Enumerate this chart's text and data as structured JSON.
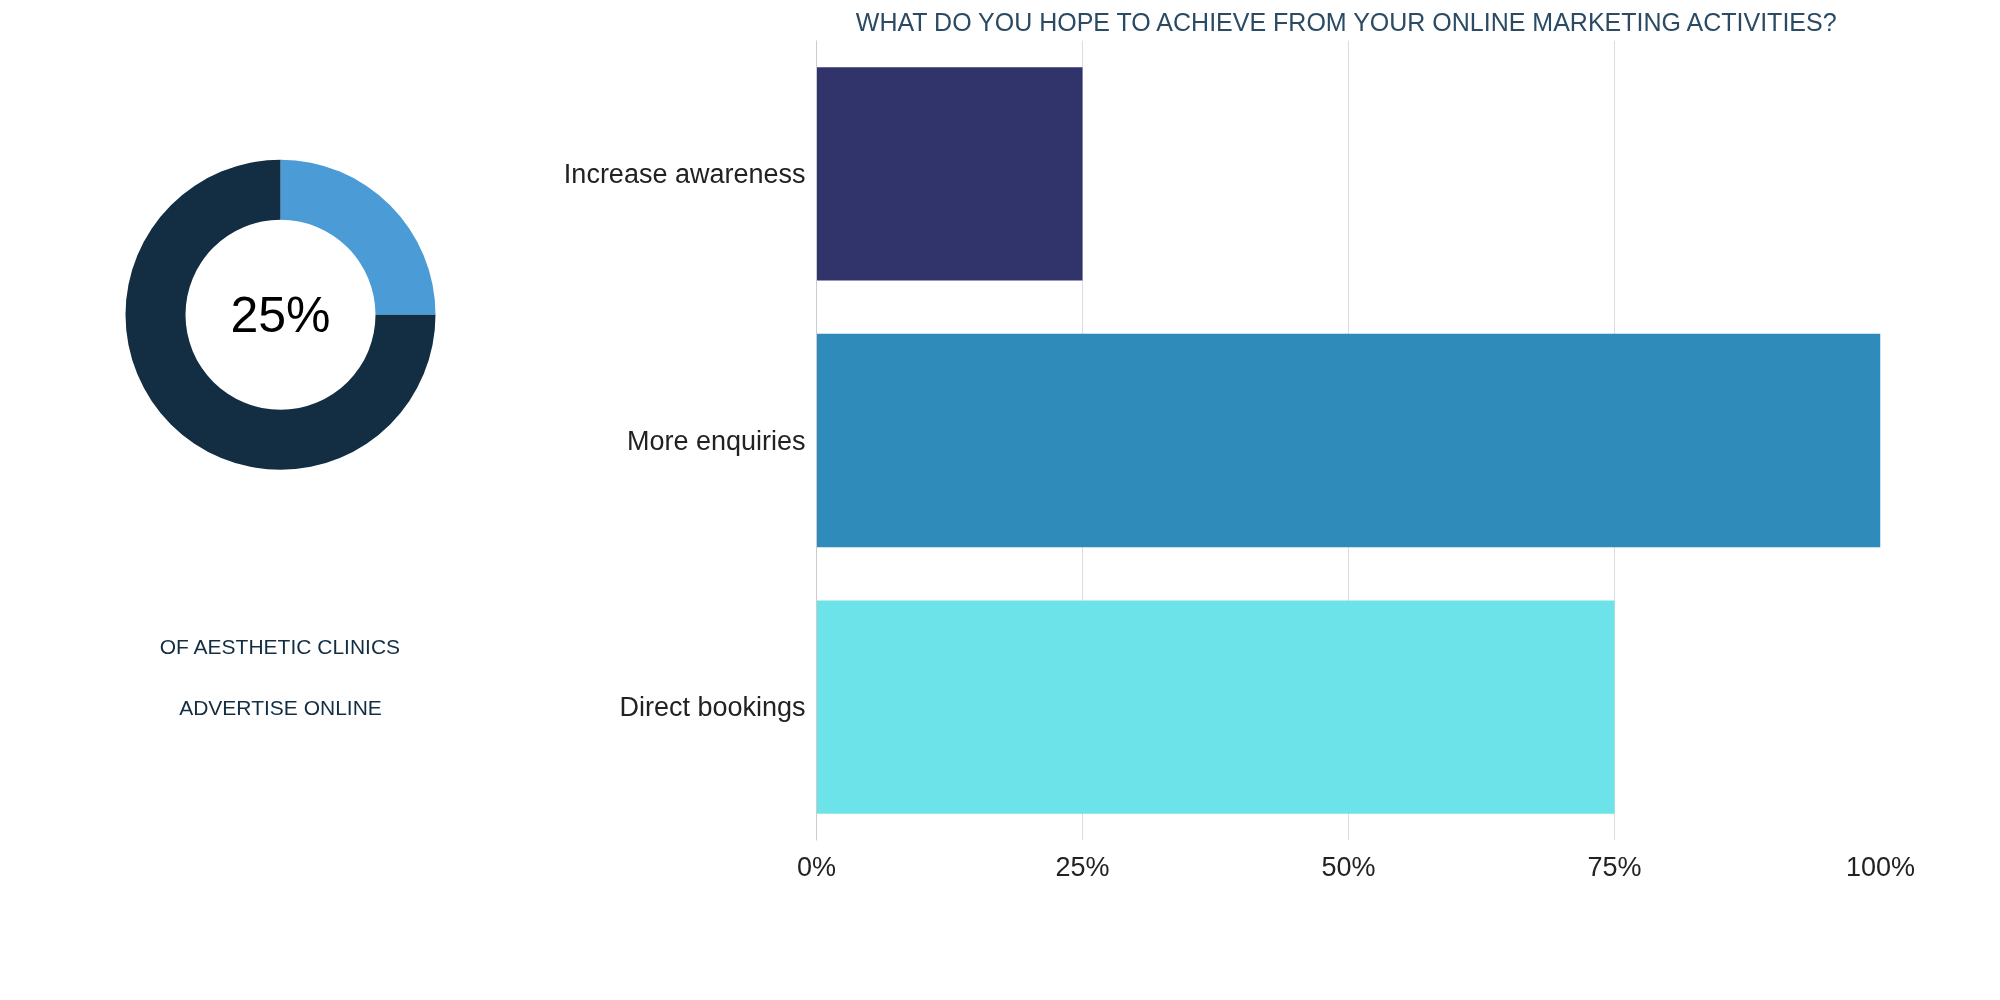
{
  "chart_data": [
    {
      "type": "donut",
      "categories": [
        null,
        null
      ],
      "values": [
        25,
        75
      ],
      "colors": [
        "#4a9bd6",
        "#132d42"
      ],
      "annotations": [
        "25%",
        "OF AESTHETIC CLINICS",
        "ADVERTISE ONLINE"
      ]
    },
    {
      "type": "bar",
      "orientation": "horizontal",
      "title": "WHAT DO YOU HOPE TO ACHIEVE FROM YOUR ONLINE MARKETING ACTIVITIES?",
      "categories": [
        "Increase awareness",
        "More enquiries",
        "Direct bookings"
      ],
      "values": [
        25,
        100,
        75
      ],
      "colors": [
        "#31336b",
        "#2e8bba",
        "#6ce3e8"
      ],
      "xlim": [
        0,
        100
      ],
      "xticks": [
        {
          "value": 0,
          "label": "0%"
        },
        {
          "value": 25,
          "label": "25%"
        },
        {
          "value": 50,
          "label": "50%"
        },
        {
          "value": 75,
          "label": "75%"
        },
        {
          "value": 100,
          "label": "100%"
        }
      ],
      "grid": "x"
    }
  ]
}
